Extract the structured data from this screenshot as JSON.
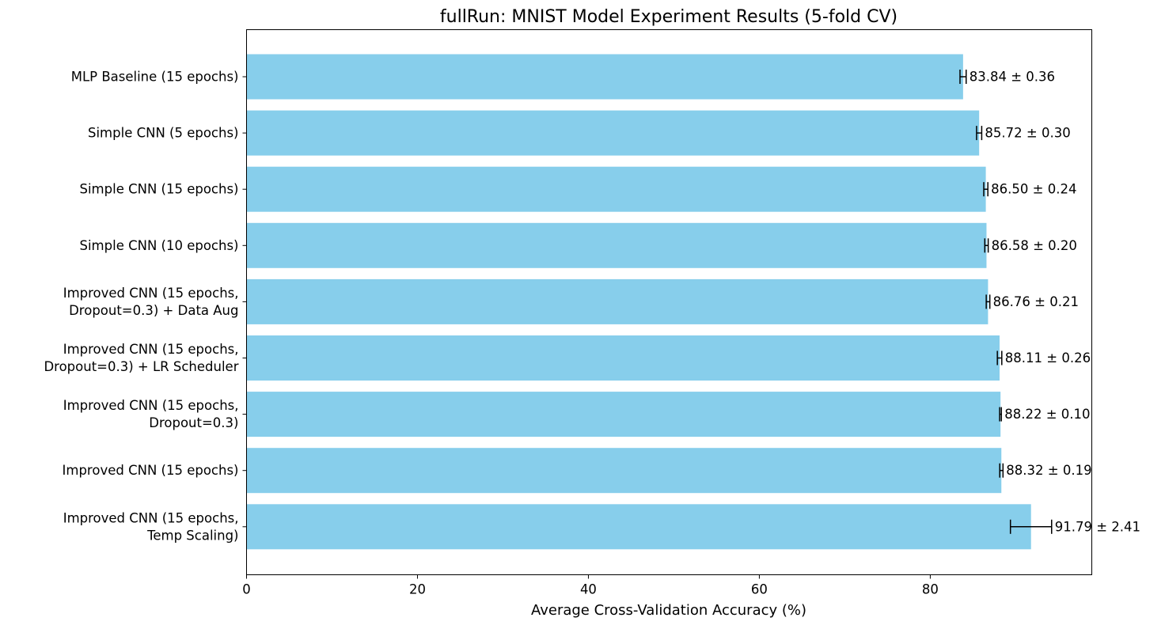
{
  "chart_data": {
    "type": "bar",
    "orientation": "horizontal",
    "title": "fullRun: MNIST Model Experiment Results (5-fold CV)",
    "xlabel": "Average Cross-Validation Accuracy (%)",
    "ylabel": "",
    "xlim": [
      0,
      98.9
    ],
    "xticks": [
      0,
      20,
      40,
      60,
      80
    ],
    "grid": false,
    "bar_color": "#87CEEB",
    "error_color": "#000000",
    "categories": [
      [
        "MLP Baseline (15 epochs)"
      ],
      [
        "Simple CNN (5 epochs)"
      ],
      [
        "Simple CNN (15 epochs)"
      ],
      [
        "Simple CNN (10 epochs)"
      ],
      [
        "Improved CNN (15 epochs,",
        "Dropout=0.3) + Data Aug"
      ],
      [
        "Improved CNN (15 epochs,",
        "Dropout=0.3) + LR Scheduler"
      ],
      [
        "Improved CNN (15 epochs,",
        "Dropout=0.3)"
      ],
      [
        "Improved CNN (15 epochs)"
      ],
      [
        "Improved CNN (15 epochs,",
        "Temp Scaling)"
      ]
    ],
    "values": [
      83.84,
      85.72,
      86.5,
      86.58,
      86.76,
      88.11,
      88.22,
      88.32,
      91.79
    ],
    "errors": [
      0.36,
      0.3,
      0.24,
      0.2,
      0.21,
      0.26,
      0.1,
      0.19,
      2.41
    ],
    "data_labels": [
      "83.84 ± 0.36",
      "85.72 ± 0.30",
      "86.50 ± 0.24",
      "86.58 ± 0.20",
      "86.76 ± 0.21",
      "88.11 ± 0.26",
      "88.22 ± 0.10",
      "88.32 ± 0.19",
      "91.79 ± 2.41"
    ]
  }
}
